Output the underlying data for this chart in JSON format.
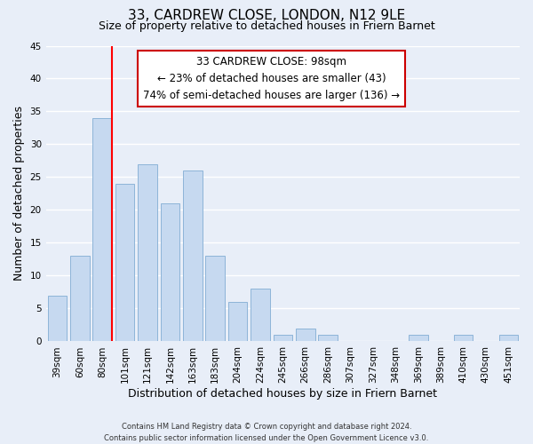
{
  "title": "33, CARDREW CLOSE, LONDON, N12 9LE",
  "subtitle": "Size of property relative to detached houses in Friern Barnet",
  "xlabel": "Distribution of detached houses by size in Friern Barnet",
  "ylabel": "Number of detached properties",
  "footer_lines": [
    "Contains HM Land Registry data © Crown copyright and database right 2024.",
    "Contains public sector information licensed under the Open Government Licence v3.0."
  ],
  "bins": [
    "39sqm",
    "60sqm",
    "80sqm",
    "101sqm",
    "121sqm",
    "142sqm",
    "163sqm",
    "183sqm",
    "204sqm",
    "224sqm",
    "245sqm",
    "266sqm",
    "286sqm",
    "307sqm",
    "327sqm",
    "348sqm",
    "369sqm",
    "389sqm",
    "410sqm",
    "430sqm",
    "451sqm"
  ],
  "counts": [
    7,
    13,
    34,
    24,
    27,
    21,
    26,
    13,
    6,
    8,
    1,
    2,
    1,
    0,
    0,
    0,
    1,
    0,
    1,
    0,
    1
  ],
  "bar_color": "#c6d9f0",
  "bar_edge_color": "#8db4d8",
  "vline_color": "red",
  "vline_x_index": 3,
  "annotation_line0": "33 CARDREW CLOSE: 98sqm",
  "annotation_line1": "← 23% of detached houses are smaller (43)",
  "annotation_line2": "74% of semi-detached houses are larger (136) →",
  "annotation_box_color": "white",
  "annotation_box_edge_color": "#cc0000",
  "ylim": [
    0,
    45
  ],
  "yticks": [
    0,
    5,
    10,
    15,
    20,
    25,
    30,
    35,
    40,
    45
  ],
  "background_color": "#e8eef8",
  "grid_color": "white",
  "title_fontsize": 11,
  "subtitle_fontsize": 9,
  "xlabel_fontsize": 9,
  "ylabel_fontsize": 9,
  "tick_fontsize": 7.5,
  "annotation_fontsize": 8.5,
  "footer_fontsize": 6
}
